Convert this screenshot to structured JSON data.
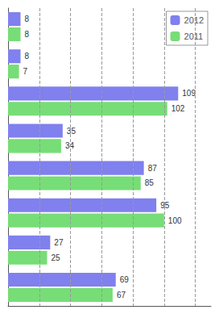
{
  "chart_data": {
    "type": "bar",
    "orientation": "horizontal",
    "categories": [
      null,
      null,
      null,
      null,
      null,
      null,
      null,
      null
    ],
    "series": [
      {
        "name": "2012",
        "color": "#8080ee",
        "values": [
          8,
          8,
          109,
          35,
          87,
          95,
          27,
          69
        ]
      },
      {
        "name": "2011",
        "color": "#77dd77",
        "values": [
          8,
          7,
          102,
          34,
          85,
          100,
          25,
          67
        ]
      }
    ],
    "xlim": [
      0,
      130
    ],
    "xticks": [
      20,
      40,
      60,
      80,
      100,
      120
    ],
    "grid": true,
    "legend": "upper right",
    "data_labels": true,
    "tick_labels": false
  }
}
